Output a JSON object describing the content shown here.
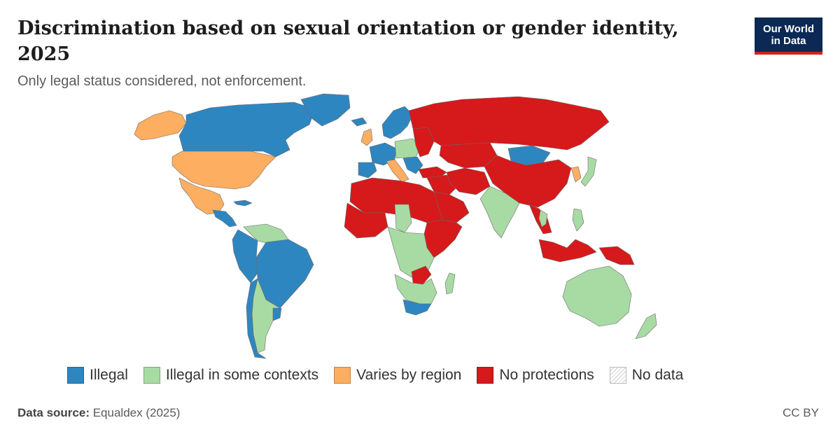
{
  "header": {
    "title": "Discrimination based on sexual orientation or gender identity, 2025",
    "subtitle": "Only legal status considered, not enforcement."
  },
  "logo": {
    "line1": "Our World",
    "line2": "in Data"
  },
  "colors": {
    "illegal": "#2e86c1",
    "illegal_some": "#a8dba3",
    "varies": "#fdae61",
    "no_protections": "#d6191b",
    "no_data": "#e6e6e6"
  },
  "legend": [
    {
      "key": "illegal",
      "label": "Illegal"
    },
    {
      "key": "illegal_some",
      "label": "Illegal in some contexts"
    },
    {
      "key": "varies",
      "label": "Varies by region"
    },
    {
      "key": "no_protections",
      "label": "No protections"
    },
    {
      "key": "no_data",
      "label": "No data"
    }
  ],
  "footer": {
    "source_label": "Data source:",
    "source_value": "Equaldex (2025)",
    "license": "CC BY"
  },
  "regions": [
    {
      "name": "Alaska",
      "status": "varies"
    },
    {
      "name": "Canada",
      "status": "illegal"
    },
    {
      "name": "Greenland",
      "status": "illegal"
    },
    {
      "name": "United States",
      "status": "varies"
    },
    {
      "name": "Mexico",
      "status": "varies"
    },
    {
      "name": "Central America",
      "status": "illegal"
    },
    {
      "name": "Cuba",
      "status": "illegal"
    },
    {
      "name": "Venezuela",
      "status": "illegal_some"
    },
    {
      "name": "Brazil",
      "status": "illegal"
    },
    {
      "name": "Peru",
      "status": "illegal"
    },
    {
      "name": "Chile",
      "status": "illegal"
    },
    {
      "name": "Argentina",
      "status": "illegal_some"
    },
    {
      "name": "Uruguay",
      "status": "illegal"
    },
    {
      "name": "Iceland",
      "status": "illegal"
    },
    {
      "name": "United Kingdom",
      "status": "varies"
    },
    {
      "name": "Scandinavia",
      "status": "illegal"
    },
    {
      "name": "Western Europe",
      "status": "illegal"
    },
    {
      "name": "Iberia",
      "status": "illegal"
    },
    {
      "name": "Italy",
      "status": "varies"
    },
    {
      "name": "Central Europe",
      "status": "illegal_some"
    },
    {
      "name": "Balkans",
      "status": "illegal"
    },
    {
      "name": "Eastern Europe",
      "status": "no_protections"
    },
    {
      "name": "Russia",
      "status": "no_protections"
    },
    {
      "name": "Kazakhstan",
      "status": "no_protections"
    },
    {
      "name": "Mongolia",
      "status": "illegal"
    },
    {
      "name": "China",
      "status": "no_protections"
    },
    {
      "name": "Korea",
      "status": "varies"
    },
    {
      "name": "Japan",
      "status": "illegal_some"
    },
    {
      "name": "Turkey",
      "status": "no_protections"
    },
    {
      "name": "Middle East",
      "status": "no_protections"
    },
    {
      "name": "Arabian Peninsula",
      "status": "no_protections"
    },
    {
      "name": "Iran",
      "status": "no_protections"
    },
    {
      "name": "India",
      "status": "illegal_some"
    },
    {
      "name": "Southeast Asia",
      "status": "no_protections"
    },
    {
      "name": "Thailand",
      "status": "illegal_some"
    },
    {
      "name": "Philippines",
      "status": "illegal_some"
    },
    {
      "name": "Indonesia",
      "status": "no_protections"
    },
    {
      "name": "Papua New Guinea",
      "status": "no_protections"
    },
    {
      "name": "Australia",
      "status": "illegal_some"
    },
    {
      "name": "New Zealand",
      "status": "illegal_some"
    },
    {
      "name": "North Africa",
      "status": "no_protections"
    },
    {
      "name": "West Africa",
      "status": "no_protections"
    },
    {
      "name": "Chad",
      "status": "illegal_some"
    },
    {
      "name": "East Africa",
      "status": "no_protections"
    },
    {
      "name": "Central Africa",
      "status": "illegal_some"
    },
    {
      "name": "Southern Africa",
      "status": "illegal_some"
    },
    {
      "name": "Zambia",
      "status": "no_protections"
    },
    {
      "name": "South Africa",
      "status": "illegal"
    },
    {
      "name": "Madagascar",
      "status": "illegal_some"
    }
  ]
}
